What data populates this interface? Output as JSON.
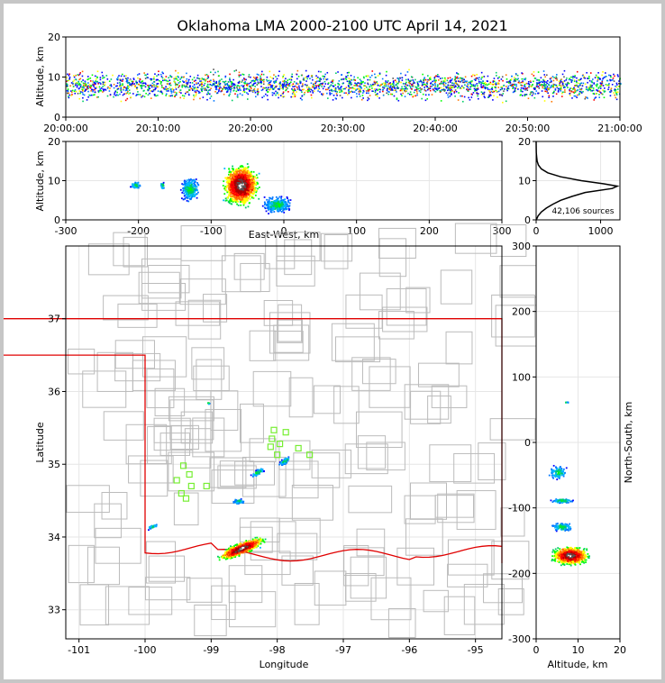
{
  "chart_data": {
    "title": "Oklahoma LMA 2000-2100 UTC April 14, 2021",
    "type": "scatter",
    "colors": {
      "scale": [
        "#0000ff",
        "#0077ff",
        "#00b7ff",
        "#00cc66",
        "#00ff00",
        "#ffff00",
        "#ff7700",
        "#ff0000",
        "#aa0000",
        "#555555",
        "#ffffff"
      ],
      "state_border": "#e00000",
      "county_lines": "#bbbbbb",
      "stations": "#77ee33"
    },
    "time_height": {
      "ylabel": "Altitude, km",
      "ylim": [
        0,
        20
      ],
      "yticks": [
        "0",
        "10",
        "20"
      ],
      "xticks": [
        "20:00:00",
        "20:10:00",
        "20:20:00",
        "20:30:00",
        "20:40:00",
        "20:50:00",
        "21:00:00"
      ]
    },
    "ew_height": {
      "ylabel": "Altitude, km",
      "xlabel": "East-West, km",
      "xlim": [
        -300,
        300
      ],
      "ylim": [
        0,
        20
      ],
      "xticks": [
        "-300",
        "-200",
        "-100",
        "0",
        "100",
        "200",
        "300"
      ],
      "yticks": [
        "0",
        "10",
        "20"
      ]
    },
    "histogram": {
      "annotation": "42,106 sources",
      "xlim": [
        0,
        1300
      ],
      "ylim": [
        0,
        20
      ],
      "xticks": [
        "0",
        "1000"
      ],
      "yticks": [
        "0",
        "10",
        "20"
      ],
      "points": [
        [
          3,
          0
        ],
        [
          30,
          1
        ],
        [
          80,
          2
        ],
        [
          160,
          3
        ],
        [
          260,
          4
        ],
        [
          380,
          5
        ],
        [
          560,
          6
        ],
        [
          760,
          7
        ],
        [
          1180,
          8
        ],
        [
          1260,
          8.6
        ],
        [
          1050,
          9.2
        ],
        [
          700,
          10
        ],
        [
          380,
          11
        ],
        [
          180,
          12
        ],
        [
          80,
          13
        ],
        [
          35,
          14
        ],
        [
          15,
          15
        ],
        [
          8,
          16
        ],
        [
          3,
          17
        ],
        [
          1,
          18
        ],
        [
          0,
          20
        ]
      ]
    },
    "plan_view": {
      "xlabel": "Longitude",
      "ylabel": "Latitude",
      "xlim": [
        -101.2,
        -94.6
      ],
      "ylim": [
        32.6,
        38.0
      ],
      "xticks": [
        "-101",
        "-100",
        "-99",
        "-98",
        "-97",
        "-96",
        "-95"
      ],
      "yticks": [
        "33",
        "34",
        "35",
        "36",
        "37"
      ],
      "stations": [
        [
          -98.05,
          35.47
        ],
        [
          -97.87,
          35.44
        ],
        [
          -98.08,
          35.35
        ],
        [
          -97.96,
          35.28
        ],
        [
          -98.1,
          35.24
        ],
        [
          -97.68,
          35.22
        ],
        [
          -97.51,
          35.13
        ],
        [
          -98.0,
          35.13
        ],
        [
          -99.42,
          34.98
        ],
        [
          -99.33,
          34.86
        ],
        [
          -99.52,
          34.78
        ],
        [
          -99.3,
          34.7
        ],
        [
          -99.07,
          34.7
        ],
        [
          -99.45,
          34.6
        ],
        [
          -99.38,
          34.53
        ]
      ]
    },
    "ns_height": {
      "ylabel": "North-South, km",
      "xlabel": "Altitude, km",
      "xlim": [
        0,
        20
      ],
      "ylim": [
        -300,
        300
      ],
      "xticks": [
        "0",
        "10",
        "20"
      ],
      "yticks": [
        "-300",
        "-200",
        "-100",
        "0",
        "100",
        "200",
        "300"
      ]
    }
  }
}
